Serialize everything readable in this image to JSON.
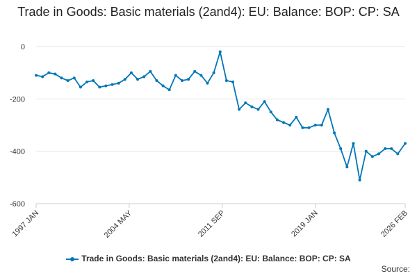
{
  "title": "Trade in Goods: Basic materials (2and4): EU: Balance: BOP: CP: SA",
  "source_label": "Source:",
  "colors": {
    "series": "#0076b6",
    "grid": "#e6e6e6",
    "axis": "#333333"
  },
  "chart_data": {
    "type": "line",
    "title": "Trade in Goods: Basic materials (2and4): EU: Balance: BOP: CP: SA",
    "xlabel": "",
    "ylabel": "",
    "ylim": [
      -600,
      0
    ],
    "yticks": [
      0,
      -200,
      -400,
      -600
    ],
    "ytick_labels": [
      "0",
      "-200",
      "-400",
      "-600"
    ],
    "xrange": [
      "1997-01",
      "2026-02"
    ],
    "xticks": [
      "1997-01",
      "2004-05",
      "2011-09",
      "2019-01",
      "2026-02"
    ],
    "xtick_labels": [
      "1997 JAN",
      "2004 MAY",
      "2011 SEP",
      "2019 JAN",
      "2026 FEB"
    ],
    "grid": "horizontal",
    "legend_position": "bottom",
    "series": [
      {
        "name": "Trade in Goods: Basic materials (2and4): EU: Balance: BOP: CP: SA",
        "x": [
          "1997-01",
          "1997-07",
          "1998-01",
          "1998-07",
          "1999-01",
          "1999-07",
          "2000-01",
          "2000-07",
          "2001-01",
          "2001-07",
          "2002-01",
          "2002-07",
          "2003-01",
          "2003-07",
          "2004-01",
          "2004-07",
          "2005-01",
          "2005-07",
          "2006-01",
          "2006-07",
          "2007-01",
          "2007-07",
          "2008-01",
          "2008-07",
          "2009-01",
          "2009-07",
          "2010-01",
          "2010-07",
          "2011-01",
          "2011-07",
          "2012-01",
          "2012-07",
          "2013-01",
          "2013-07",
          "2014-01",
          "2014-07",
          "2015-01",
          "2015-07",
          "2016-01",
          "2016-07",
          "2017-01",
          "2017-07",
          "2018-01",
          "2018-07",
          "2019-01",
          "2019-07",
          "2020-01",
          "2020-07",
          "2021-01",
          "2021-07",
          "2022-01",
          "2022-07",
          "2023-01",
          "2023-07",
          "2024-01",
          "2024-07",
          "2025-01",
          "2025-07",
          "2026-02"
        ],
        "values": [
          -110,
          -115,
          -100,
          -105,
          -120,
          -130,
          -120,
          -155,
          -135,
          -130,
          -155,
          -150,
          -145,
          -140,
          -125,
          -100,
          -125,
          -115,
          -95,
          -130,
          -150,
          -165,
          -110,
          -130,
          -125,
          -95,
          -110,
          -140,
          -100,
          -20,
          -130,
          -135,
          -240,
          -215,
          -230,
          -240,
          -210,
          -250,
          -280,
          -290,
          -300,
          -270,
          -310,
          -310,
          -300,
          -300,
          -240,
          -330,
          -390,
          -460,
          -370,
          -510,
          -400,
          -420,
          -410,
          -390,
          -390,
          -410,
          -370
        ]
      }
    ]
  }
}
